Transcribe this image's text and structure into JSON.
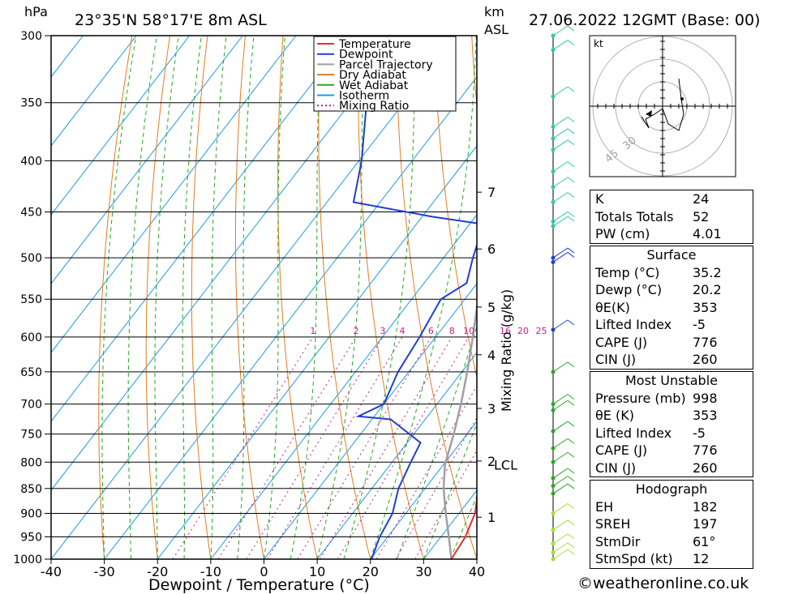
{
  "header": {
    "unit_left": "hPa",
    "location": "23°35'N  58°17'E  8m  ASL",
    "unit_km": "km",
    "unit_asl": "ASL",
    "datetime": "27.06.2022  12GMT  (Base: 00)"
  },
  "chart_data": {
    "type": "line",
    "xlabel": "Dewpoint / Temperature (°C)",
    "ylabel": "Mixing Ratio (g/kg)",
    "xlim": [
      -40,
      40
    ],
    "ylim": [
      1000,
      300
    ],
    "x_ticks": [
      -40,
      -30,
      -20,
      -10,
      0,
      10,
      20,
      30,
      40
    ],
    "pressure_levels": [
      300,
      350,
      400,
      450,
      500,
      550,
      600,
      650,
      700,
      750,
      800,
      850,
      900,
      950,
      1000
    ],
    "km_levels": [
      {
        "label": "1",
        "p": 908
      },
      {
        "label": "2",
        "p": 798
      },
      {
        "label": "3",
        "p": 707
      },
      {
        "label": "4",
        "p": 625
      },
      {
        "label": "5",
        "p": 560
      },
      {
        "label": "6",
        "p": 490
      },
      {
        "label": "7",
        "p": 430
      }
    ],
    "lcl": {
      "label": "LCL",
      "p": 805
    },
    "mixing_ratio_labels": [
      "1",
      "2",
      "3",
      "4",
      "6",
      "8",
      "10",
      "16",
      "20",
      "25"
    ],
    "legend": [
      {
        "name": "Temperature",
        "color": "#e8302c",
        "dash": false
      },
      {
        "name": "Dewpoint",
        "color": "#1f3fd0",
        "dash": false
      },
      {
        "name": "Parcel Trajectory",
        "color": "#a0a0a0",
        "dash": false
      },
      {
        "name": "Dry Adiabat",
        "color": "#e27d1e",
        "dash": false
      },
      {
        "name": "Wet Adiabat",
        "color": "#22aa22",
        "dash": false
      },
      {
        "name": "Isotherm",
        "color": "#1e9be0",
        "dash": false
      },
      {
        "name": "Mixing Ratio",
        "color": "#c0208a",
        "dash": true
      }
    ],
    "series": [
      {
        "name": "Temperature",
        "points": [
          [
            1000,
            35.2
          ],
          [
            950,
            34.6
          ],
          [
            900,
            33.0
          ],
          [
            850,
            30.0
          ],
          [
            800,
            26.5
          ],
          [
            760,
            23.3
          ],
          [
            730,
            23.0
          ],
          [
            700,
            20.5
          ],
          [
            650,
            16.0
          ],
          [
            600,
            10.5
          ],
          [
            550,
            4.5
          ],
          [
            500,
            -2.0
          ],
          [
            470,
            -4.5
          ],
          [
            460,
            -5.5
          ],
          [
            455,
            -3.0
          ],
          [
            430,
            -5.5
          ],
          [
            400,
            -11.5
          ],
          [
            370,
            -16.5
          ],
          [
            360,
            -18.0
          ]
        ]
      },
      {
        "name": "Dewpoint",
        "points": [
          [
            1000,
            20.2
          ],
          [
            950,
            18.5
          ],
          [
            900,
            17.5
          ],
          [
            850,
            15.0
          ],
          [
            800,
            13.5
          ],
          [
            765,
            12.5
          ],
          [
            725,
            3.5
          ],
          [
            720,
            -3.0
          ],
          [
            700,
            0.0
          ],
          [
            650,
            -2.0
          ],
          [
            600,
            -3.0
          ],
          [
            550,
            -4.5
          ],
          [
            530,
            -2.0
          ],
          [
            500,
            -4.5
          ],
          [
            480,
            -6.0
          ],
          [
            462,
            -8.5
          ],
          [
            455,
            -18.0
          ],
          [
            440,
            -35.0
          ],
          [
            400,
            -39.5
          ],
          [
            350,
            -47.0
          ],
          [
            300,
            -54.5
          ]
        ]
      },
      {
        "name": "Parcel Trajectory",
        "points": [
          [
            1000,
            35.2
          ],
          [
            950,
            31.5
          ],
          [
            900,
            27.5
          ],
          [
            850,
            23.5
          ],
          [
            805,
            20.3
          ],
          [
            750,
            17.5
          ],
          [
            700,
            14.5
          ],
          [
            650,
            11.0
          ],
          [
            600,
            7.0
          ],
          [
            550,
            2.5
          ],
          [
            500,
            -3.0
          ],
          [
            450,
            -9.5
          ],
          [
            400,
            -16.5
          ],
          [
            365,
            -22.0
          ]
        ]
      }
    ],
    "wind_barbs_pressures": [
      1000,
      985,
      965,
      935,
      900,
      860,
      845,
      830,
      800,
      775,
      745,
      710,
      700,
      650,
      590,
      505,
      500,
      465,
      460,
      440,
      425,
      410,
      390,
      380,
      370,
      345,
      310,
      300
    ],
    "hodograph": {
      "unit": "kt",
      "ring_labels": [
        "45",
        "30"
      ]
    }
  },
  "indices": {
    "K": "24",
    "Totals Totals": "52",
    "PW (cm)": "4.01"
  },
  "surface": {
    "title": "Surface",
    "rows": [
      {
        "label": "Temp (°C)",
        "value": "35.2"
      },
      {
        "label": "Dewp (°C)",
        "value": "20.2"
      },
      {
        "label": "θE(K)",
        "value": "353"
      },
      {
        "label": "Lifted Index",
        "value": "-5"
      },
      {
        "label": "CAPE (J)",
        "value": "776"
      },
      {
        "label": "CIN (J)",
        "value": "260"
      }
    ]
  },
  "most_unstable": {
    "title": "Most Unstable",
    "rows": [
      {
        "label": "Pressure (mb)",
        "value": "998"
      },
      {
        "label": "θE (K)",
        "value": "353"
      },
      {
        "label": "Lifted Index",
        "value": "-5"
      },
      {
        "label": "CAPE (J)",
        "value": "776"
      },
      {
        "label": "CIN (J)",
        "value": "260"
      }
    ]
  },
  "hodograph_table": {
    "title": "Hodograph",
    "rows": [
      {
        "label": "EH",
        "value": "182"
      },
      {
        "label": "SREH",
        "value": "197"
      },
      {
        "label": "StmDir",
        "value": "61°"
      },
      {
        "label": "StmSpd (kt)",
        "value": "12"
      }
    ]
  },
  "footer": {
    "credit": "©weatheronline.co.uk"
  }
}
